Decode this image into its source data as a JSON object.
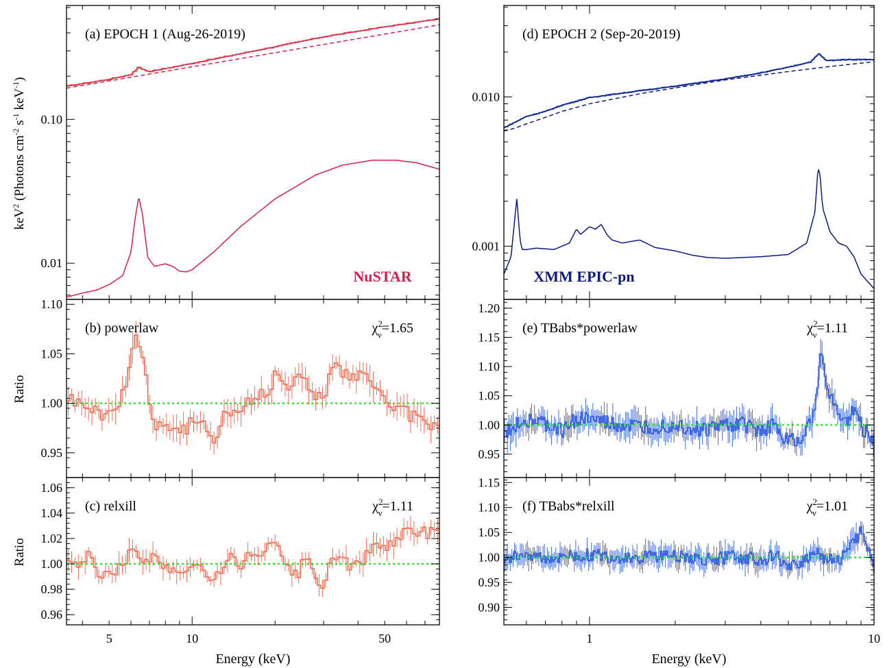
{
  "figure": {
    "left_xlabel": "Energy (keV)",
    "right_xlabel": "Energy (keV)",
    "top_ylabel_main": "keV",
    "top_ylabel_sup1": "2",
    "top_ylabel_mid": " (Photons cm",
    "top_ylabel_sup2": "-2",
    "top_ylabel_mid2": " s",
    "top_ylabel_sup3": "-1",
    "top_ylabel_mid3": " keV",
    "top_ylabel_sup4": "-1",
    "top_ylabel_end": ")",
    "ratio_ylabel": "Ratio",
    "nustar_label": "NuSTAR",
    "xmm_label": "XMM EPIC-pn"
  },
  "colors": {
    "nustar_model": "#d6204b",
    "nustar_data": "#f26a4f",
    "xmm_model": "#0b1a80",
    "xmm_data": "#4169e1",
    "unity_line": "#19e619"
  },
  "chart_data": [
    {
      "id": "a",
      "type": "line",
      "title": "(a)   EPOCH 1 (Aug-26-2019)",
      "xscale": "log",
      "yscale": "log",
      "xlim": [
        3.5,
        79
      ],
      "ylim": [
        0.0056,
        0.62
      ],
      "ytick_labels": [
        "0.01",
        "0.10"
      ],
      "ytick_values": [
        0.01,
        0.1
      ],
      "series": [
        {
          "role": "data",
          "x": [
            3.5,
            5,
            6,
            6.4,
            7,
            10,
            20,
            30,
            50,
            79
          ],
          "y": [
            0.17,
            0.19,
            0.205,
            0.23,
            0.215,
            0.245,
            0.32,
            0.375,
            0.44,
            0.5
          ]
        },
        {
          "role": "total-model",
          "x": [
            3.5,
            5,
            6,
            6.4,
            7,
            10,
            20,
            30,
            50,
            79
          ],
          "y": [
            0.17,
            0.19,
            0.205,
            0.23,
            0.215,
            0.245,
            0.32,
            0.375,
            0.44,
            0.5
          ]
        },
        {
          "role": "powerlaw-component",
          "x": [
            3.5,
            79
          ],
          "y": [
            0.165,
            0.455
          ]
        },
        {
          "role": "reflection-component",
          "x": [
            3.5,
            4,
            4.5,
            5,
            5.6,
            6.0,
            6.2,
            6.4,
            6.6,
            6.9,
            7.3,
            8,
            8.5,
            9,
            9.5,
            10,
            12,
            15,
            20,
            28,
            35,
            45,
            55,
            65,
            79
          ],
          "y": [
            0.0058,
            0.0062,
            0.0065,
            0.0071,
            0.0082,
            0.012,
            0.02,
            0.029,
            0.022,
            0.011,
            0.0095,
            0.0099,
            0.0095,
            0.0088,
            0.0087,
            0.009,
            0.012,
            0.018,
            0.028,
            0.041,
            0.048,
            0.052,
            0.052,
            0.05,
            0.045
          ]
        }
      ]
    },
    {
      "id": "b",
      "type": "line",
      "title": "(b)  powerlaw",
      "chi_label": "χ",
      "chi_sub": "ν",
      "chi_sup": "2",
      "chi_value": "=1.65",
      "xscale": "log",
      "yscale": "linear",
      "xlim": [
        3.5,
        79
      ],
      "ylim": [
        0.925,
        1.105
      ],
      "ytick_labels": [
        "0.95",
        "1.00",
        "1.05",
        "1.10"
      ],
      "ytick_values": [
        0.95,
        1.0,
        1.05,
        1.1
      ],
      "series": [
        {
          "role": "ratio",
          "x": [
            3.5,
            3.8,
            4.2,
            4.5,
            5.0,
            5.5,
            6.0,
            6.2,
            6.4,
            6.6,
            6.8,
            7.0,
            7.3,
            7.6,
            8.0,
            8.5,
            9.0,
            9.5,
            10,
            11,
            12,
            13,
            14,
            15,
            16,
            17,
            18,
            19,
            20,
            22,
            24,
            26,
            28,
            30,
            32,
            35,
            40,
            45,
            50,
            60,
            70,
            79
          ],
          "y": [
            1.01,
            1.0,
            1.0,
            0.99,
            0.99,
            1.0,
            1.05,
            1.07,
            1.06,
            1.05,
            1.03,
            1.0,
            0.98,
            0.98,
            0.975,
            0.98,
            0.97,
            0.975,
            0.98,
            0.975,
            0.965,
            0.99,
            0.99,
            0.995,
            1.0,
            1.005,
            1.01,
            1.015,
            1.03,
            1.02,
            1.025,
            1.02,
            1.01,
            1.005,
            1.04,
            1.03,
            1.025,
            1.025,
            1.0,
            0.99,
            0.98,
            0.98
          ]
        },
        {
          "role": "unity",
          "x": [
            3.5,
            79
          ],
          "y": [
            1.0,
            1.0
          ]
        }
      ]
    },
    {
      "id": "c",
      "type": "line",
      "title": "(c)  relxill",
      "chi_label": "χ",
      "chi_sub": "ν",
      "chi_sup": "2",
      "chi_value": "=1.11",
      "xscale": "log",
      "yscale": "linear",
      "xlim": [
        3.5,
        79
      ],
      "ylim": [
        0.952,
        1.068
      ],
      "ytick_labels": [
        "0.96",
        "0.98",
        "1.00",
        "1.02",
        "1.04",
        "1.06"
      ],
      "ytick_values": [
        0.96,
        0.98,
        1.0,
        1.02,
        1.04,
        1.06
      ],
      "xtick_labels": [
        "5",
        "10",
        "50"
      ],
      "xtick_values": [
        5,
        10,
        50
      ],
      "series": [
        {
          "role": "ratio",
          "x": [
            3.5,
            3.8,
            4.2,
            4.5,
            5.0,
            5.5,
            6.0,
            6.4,
            6.8,
            7.3,
            8.0,
            8.5,
            9.0,
            10,
            11,
            12,
            13,
            14,
            15,
            16,
            18,
            20,
            22,
            24,
            26,
            28,
            30,
            32,
            35,
            40,
            45,
            50,
            60,
            70,
            79
          ],
          "y": [
            1.005,
            1.0,
            1.005,
            0.995,
            0.99,
            1.0,
            1.01,
            1.005,
            1.0,
            1.01,
            0.995,
            1.0,
            0.99,
            0.995,
            1.0,
            0.985,
            1.0,
            1.005,
            0.995,
            1.005,
            1.01,
            1.015,
            0.995,
            0.99,
            1.005,
            0.985,
            0.98,
            1.01,
            1.0,
            1.0,
            1.01,
            1.015,
            1.025,
            1.025,
            1.025
          ]
        },
        {
          "role": "unity",
          "x": [
            3.5,
            79
          ],
          "y": [
            1.0,
            1.0
          ]
        }
      ]
    },
    {
      "id": "d",
      "type": "line",
      "title": "(d)  EPOCH 2 (Sep-20-2019)",
      "xscale": "log",
      "yscale": "log",
      "xlim": [
        0.5,
        10
      ],
      "ylim": [
        0.00044,
        0.041
      ],
      "ytick_labels": [
        "0.001",
        "0.010"
      ],
      "ytick_values": [
        0.001,
        0.01
      ],
      "series": [
        {
          "role": "data",
          "x": [
            0.5,
            0.55,
            0.6,
            0.7,
            0.8,
            1.0,
            1.5,
            2,
            3,
            4,
            5,
            6,
            6.4,
            6.8,
            8,
            10
          ],
          "y": [
            0.0062,
            0.0068,
            0.0074,
            0.008,
            0.0088,
            0.0099,
            0.011,
            0.0118,
            0.0132,
            0.0145,
            0.0158,
            0.0172,
            0.0195,
            0.0175,
            0.0178,
            0.0178
          ]
        },
        {
          "role": "total-model",
          "x": [
            0.5,
            0.55,
            0.6,
            0.7,
            0.8,
            1.0,
            1.5,
            2,
            3,
            4,
            5,
            6,
            6.4,
            6.8,
            8,
            10
          ],
          "y": [
            0.0062,
            0.0068,
            0.0074,
            0.008,
            0.0088,
            0.0099,
            0.011,
            0.0118,
            0.0132,
            0.0145,
            0.0158,
            0.0172,
            0.0195,
            0.0175,
            0.0178,
            0.0178
          ]
        },
        {
          "role": "powerlaw-component",
          "x": [
            0.5,
            0.55,
            0.6,
            0.7,
            0.8,
            1.0,
            1.5,
            2,
            3,
            5,
            7,
            10
          ],
          "y": [
            0.0059,
            0.0062,
            0.0066,
            0.0073,
            0.008,
            0.009,
            0.0105,
            0.0115,
            0.013,
            0.0148,
            0.016,
            0.0172
          ]
        },
        {
          "role": "reflection-component",
          "x": [
            0.5,
            0.53,
            0.555,
            0.57,
            0.58,
            0.6,
            0.65,
            0.75,
            0.85,
            0.9,
            0.93,
            1.0,
            1.05,
            1.1,
            1.15,
            1.2,
            1.3,
            1.5,
            1.7,
            2.0,
            2.3,
            2.6,
            3.0,
            4.0,
            5.0,
            5.8,
            6.2,
            6.35,
            6.45,
            6.6,
            7.0,
            7.5,
            8.0,
            8.5,
            9.0,
            10
          ],
          "y": [
            0.00065,
            0.00085,
            0.0021,
            0.0011,
            0.00095,
            0.00095,
            0.00097,
            0.00095,
            0.00105,
            0.0013,
            0.0012,
            0.00135,
            0.0013,
            0.0014,
            0.0012,
            0.0011,
            0.00105,
            0.0011,
            0.00098,
            0.00093,
            0.00087,
            0.00084,
            0.00083,
            0.00085,
            0.00088,
            0.00105,
            0.0017,
            0.0033,
            0.0031,
            0.0018,
            0.00125,
            0.00105,
            0.001,
            0.00085,
            0.00065,
            0.00052
          ]
        }
      ]
    },
    {
      "id": "e",
      "type": "line",
      "title": "(e)  TBabs*powerlaw",
      "chi_label": "χ",
      "chi_sub": "ν",
      "chi_sup": "2",
      "chi_value": "=1.11",
      "xscale": "log",
      "yscale": "linear",
      "xlim": [
        0.5,
        10
      ],
      "ylim": [
        0.91,
        1.215
      ],
      "ytick_labels": [
        "0.95",
        "1.00",
        "1.05",
        "1.10",
        "1.15",
        "1.20"
      ],
      "ytick_values": [
        0.95,
        1.0,
        1.05,
        1.1,
        1.15,
        1.2
      ],
      "series": [
        {
          "role": "ratio",
          "x": [
            0.5,
            0.55,
            0.6,
            0.7,
            0.8,
            0.9,
            1.0,
            1.2,
            1.5,
            2.0,
            2.5,
            3.0,
            3.5,
            4.0,
            4.5,
            5.0,
            5.5,
            6.0,
            6.3,
            6.5,
            6.7,
            7.0,
            7.5,
            8.0,
            8.5,
            9.0,
            10
          ],
          "y": [
            0.98,
            1.0,
            1.01,
            1.0,
            0.99,
            1.01,
            1.01,
            1.0,
            0.995,
            1.0,
            0.99,
            1.0,
            1.0,
            0.99,
            1.0,
            0.97,
            0.98,
            1.0,
            1.05,
            1.12,
            1.09,
            1.05,
            1.02,
            1.0,
            1.03,
            1.0,
            0.965
          ]
        },
        {
          "role": "unity",
          "x": [
            0.5,
            10
          ],
          "y": [
            1.0,
            1.0
          ]
        }
      ]
    },
    {
      "id": "f",
      "type": "line",
      "title": "(f)  TBabs*relxill",
      "chi_label": "χ",
      "chi_sub": "ν",
      "chi_sup": "2",
      "chi_value": "=1.01",
      "xscale": "log",
      "yscale": "linear",
      "xlim": [
        0.5,
        10
      ],
      "ylim": [
        0.865,
        1.16
      ],
      "ytick_labels": [
        "0.90",
        "0.95",
        "1.00",
        "1.05",
        "1.10",
        "1.15"
      ],
      "ytick_values": [
        0.9,
        0.95,
        1.0,
        1.05,
        1.1,
        1.15
      ],
      "xtick_labels": [
        "1",
        "10"
      ],
      "xtick_values": [
        1,
        10
      ],
      "series": [
        {
          "role": "ratio",
          "x": [
            0.5,
            0.55,
            0.6,
            0.7,
            0.8,
            0.9,
            1.0,
            1.2,
            1.5,
            2.0,
            2.5,
            3.0,
            3.5,
            4.0,
            4.5,
            5.0,
            5.5,
            6.0,
            6.3,
            6.5,
            7.0,
            7.5,
            8.0,
            8.5,
            9.0,
            10
          ],
          "y": [
            1.0,
            1.0,
            1.01,
            0.995,
            1.005,
            1.0,
            1.005,
            1.0,
            1.0,
            1.005,
            0.995,
            1.0,
            1.0,
            0.995,
            1.005,
            0.975,
            0.99,
            1.005,
            1.02,
            1.0,
            1.0,
            0.995,
            1.01,
            1.03,
            1.05,
            0.985
          ]
        },
        {
          "role": "unity",
          "x": [
            0.5,
            10
          ],
          "y": [
            1.0,
            1.0
          ]
        }
      ]
    }
  ]
}
